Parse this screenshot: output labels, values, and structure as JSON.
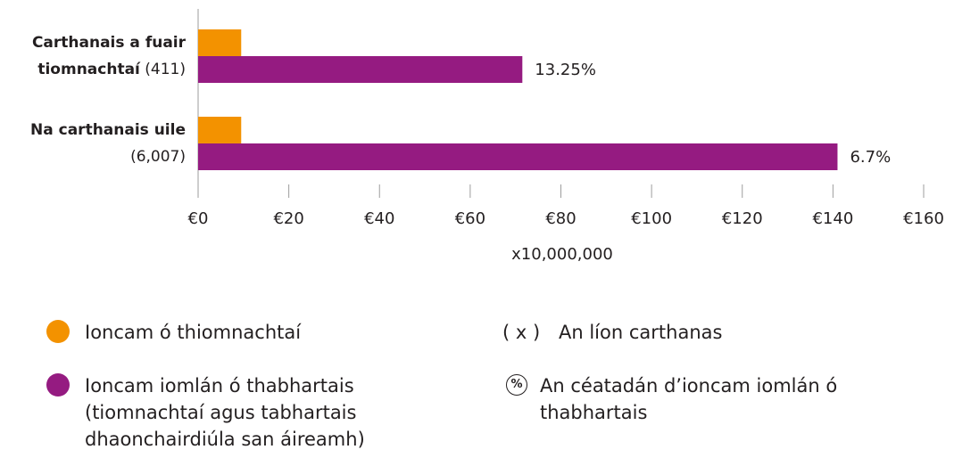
{
  "chart_data": {
    "type": "bar",
    "orientation": "horizontal",
    "categories": [
      "Carthanais a fuair tiomnachtaí",
      "Na carthanais uile"
    ],
    "category_counts": [
      "(411)",
      "(6,007)"
    ],
    "series": [
      {
        "name": "Ioncam ó thiomnachtaí",
        "color": "#f39200",
        "values": [
          9.5,
          9.5
        ]
      },
      {
        "name": "Ioncam iomlán ó thabhartais (tiomnachtaí agus tabhartais dhaonchairdiúla san áireamh)",
        "color": "#951b81",
        "values": [
          71.5,
          141
        ]
      }
    ],
    "annotations": [
      "13.25%",
      "6.7%"
    ],
    "xlim": [
      0,
      160
    ],
    "xticks": [
      {
        "value": 0,
        "label": "€0"
      },
      {
        "value": 20,
        "label": "€20"
      },
      {
        "value": 40,
        "label": "€40"
      },
      {
        "value": 60,
        "label": "€60"
      },
      {
        "value": 80,
        "label": "€80"
      },
      {
        "value": 100,
        "label": "€100"
      },
      {
        "value": 120,
        "label": "€120"
      },
      {
        "value": 140,
        "label": "€140"
      },
      {
        "value": 160,
        "label": "€160"
      }
    ],
    "x_label": "x10,000,000",
    "legend_notes": [
      {
        "symbol": "( x )",
        "text": "An líon carthanas"
      },
      {
        "symbol": "%",
        "text": "An céatadán d’ioncam iomlán ó thabhartais"
      }
    ]
  }
}
